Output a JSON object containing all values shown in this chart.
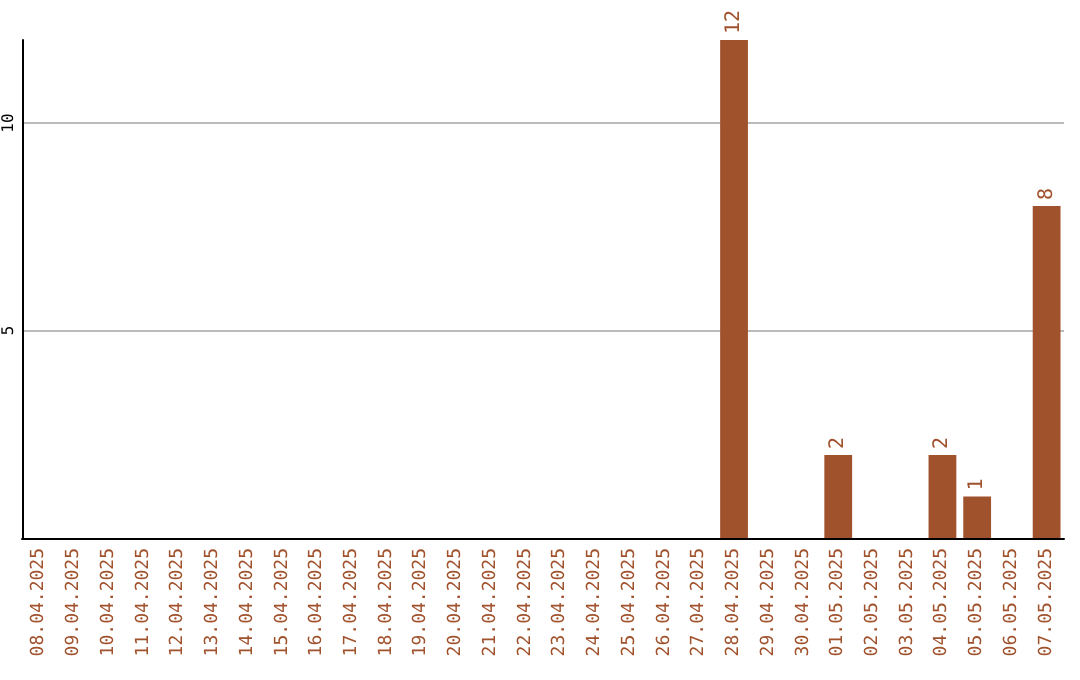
{
  "chart_data": {
    "type": "bar",
    "categories": [
      "08.04.2025",
      "09.04.2025",
      "10.04.2025",
      "11.04.2025",
      "12.04.2025",
      "13.04.2025",
      "14.04.2025",
      "15.04.2025",
      "16.04.2025",
      "17.04.2025",
      "18.04.2025",
      "19.04.2025",
      "20.04.2025",
      "21.04.2025",
      "22.04.2025",
      "23.04.2025",
      "24.04.2025",
      "25.04.2025",
      "26.04.2025",
      "27.04.2025",
      "28.04.2025",
      "29.04.2025",
      "30.04.2025",
      "01.05.2025",
      "02.05.2025",
      "03.05.2025",
      "04.05.2025",
      "05.05.2025",
      "06.05.2025",
      "07.05.2025"
    ],
    "values": [
      0,
      0,
      0,
      0,
      0,
      0,
      0,
      0,
      0,
      0,
      0,
      0,
      0,
      0,
      0,
      0,
      0,
      0,
      0,
      0,
      12,
      0,
      0,
      2,
      0,
      0,
      2,
      1,
      0,
      8
    ],
    "value_labels": [
      null,
      null,
      null,
      null,
      null,
      null,
      null,
      null,
      null,
      null,
      null,
      null,
      null,
      null,
      null,
      null,
      null,
      null,
      null,
      null,
      "12",
      null,
      null,
      "2",
      null,
      null,
      "2",
      "1",
      null,
      "8"
    ],
    "color": "#a0522d",
    "ylim": [
      0,
      12
    ],
    "yticks": [
      5,
      10
    ],
    "grid": "y"
  }
}
